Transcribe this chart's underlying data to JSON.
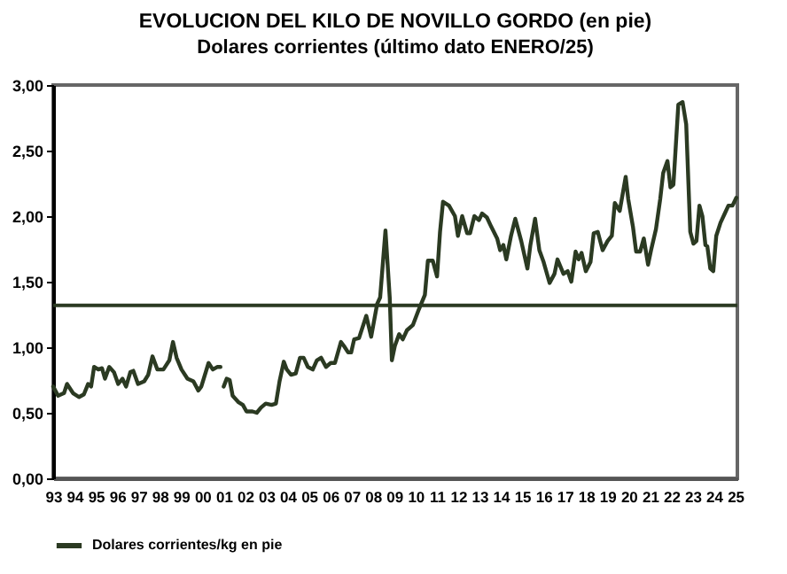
{
  "chart_data": {
    "type": "line",
    "title": "EVOLUCION DEL KILO DE NOVILLO GORDO (en pie)",
    "subtitle": "Dolares corrientes (último dato ENERO/25)",
    "x": [
      1993.0,
      1993.23,
      1993.51,
      1993.65,
      1993.93,
      1994.21,
      1994.44,
      1994.64,
      1994.78,
      1994.92,
      1995.12,
      1995.29,
      1995.43,
      1995.63,
      1995.85,
      1996.05,
      1996.25,
      1996.42,
      1996.62,
      1996.76,
      1996.98,
      1997.27,
      1997.46,
      1997.66,
      1997.89,
      1998.17,
      1998.45,
      1998.62,
      1998.79,
      1999.02,
      1999.3,
      1999.58,
      1999.81,
      1999.95,
      2000.29,
      2000.49,
      2000.71,
      2000.85,
      2000.92,
      2001.0,
      2001.14,
      2001.28,
      2001.42,
      2001.7,
      2001.9,
      2002.07,
      2002.35,
      2002.55,
      2002.75,
      2002.97,
      2003.25,
      2003.45,
      2003.62,
      2003.82,
      2003.96,
      2004.16,
      2004.38,
      2004.58,
      2004.75,
      2004.95,
      2005.18,
      2005.37,
      2005.57,
      2005.8,
      2006.02,
      2006.22,
      2006.5,
      2006.64,
      2006.84,
      2006.98,
      2007.12,
      2007.35,
      2007.69,
      2007.92,
      2008.2,
      2008.34,
      2008.59,
      2008.79,
      2008.89,
      2009.03,
      2009.23,
      2009.4,
      2009.6,
      2009.88,
      2010.16,
      2010.44,
      2010.58,
      2010.81,
      2011.01,
      2011.15,
      2011.29,
      2011.57,
      2011.85,
      2011.99,
      2012.19,
      2012.42,
      2012.56,
      2012.76,
      2012.98,
      2013.12,
      2013.35,
      2013.55,
      2013.83,
      2013.97,
      2014.12,
      2014.26,
      2014.48,
      2014.68,
      2014.96,
      2015.25,
      2015.39,
      2015.61,
      2015.81,
      2016.01,
      2016.29,
      2016.52,
      2016.66,
      2016.94,
      2017.14,
      2017.31,
      2017.51,
      2017.65,
      2017.79,
      2017.99,
      2018.21,
      2018.36,
      2018.55,
      2018.78,
      2019.01,
      2019.21,
      2019.35,
      2019.58,
      2019.86,
      2019.98,
      2020.2,
      2020.35,
      2020.54,
      2020.71,
      2020.91,
      2021.05,
      2021.28,
      2021.48,
      2021.62,
      2021.82,
      2021.96,
      2022.1,
      2022.33,
      2022.53,
      2022.7,
      2022.89,
      2023.04,
      2023.18,
      2023.32,
      2023.46,
      2023.6,
      2023.69,
      2023.83,
      2023.97,
      2024.11,
      2024.31,
      2024.51,
      2024.68,
      2024.87,
      2025.05
    ],
    "series": [
      {
        "name": "Dolares corrientes/kg en pie",
        "color": "#2b3a22",
        "values": [
          0.7,
          0.63,
          0.65,
          0.72,
          0.65,
          0.62,
          0.64,
          0.72,
          0.7,
          0.85,
          0.83,
          0.84,
          0.76,
          0.85,
          0.81,
          0.72,
          0.76,
          0.7,
          0.81,
          0.82,
          0.72,
          0.74,
          0.79,
          0.93,
          0.83,
          0.83,
          0.9,
          1.04,
          0.92,
          0.83,
          0.76,
          0.74,
          0.67,
          0.7,
          0.88,
          0.83,
          0.85,
          0.85,
          null,
          0.7,
          0.76,
          0.75,
          0.63,
          0.58,
          0.56,
          0.51,
          0.51,
          0.5,
          0.54,
          0.57,
          0.56,
          0.57,
          0.74,
          0.89,
          0.83,
          0.79,
          0.8,
          0.92,
          0.92,
          0.85,
          0.83,
          0.9,
          0.92,
          0.85,
          0.88,
          0.88,
          1.04,
          1.01,
          0.96,
          0.96,
          1.06,
          1.07,
          1.24,
          1.08,
          1.33,
          1.38,
          1.89,
          1.38,
          0.9,
          1.01,
          1.1,
          1.06,
          1.13,
          1.17,
          1.29,
          1.4,
          1.66,
          1.66,
          1.54,
          1.88,
          2.11,
          2.08,
          2.0,
          1.85,
          2.0,
          1.87,
          1.87,
          2.0,
          1.97,
          2.02,
          1.99,
          1.92,
          1.83,
          1.74,
          1.78,
          1.67,
          1.85,
          1.98,
          1.81,
          1.6,
          1.78,
          1.98,
          1.74,
          1.65,
          1.49,
          1.56,
          1.67,
          1.56,
          1.58,
          1.5,
          1.73,
          1.67,
          1.72,
          1.58,
          1.65,
          1.87,
          1.88,
          1.74,
          1.81,
          1.85,
          2.1,
          2.04,
          2.3,
          2.13,
          1.92,
          1.73,
          1.73,
          1.83,
          1.63,
          1.74,
          1.9,
          2.13,
          2.33,
          2.42,
          2.22,
          2.24,
          2.85,
          2.87,
          2.7,
          1.88,
          1.79,
          1.81,
          2.08,
          2.0,
          1.78,
          1.77,
          1.6,
          1.58,
          1.85,
          1.95,
          2.02,
          2.08,
          2.08,
          2.14
        ]
      }
    ],
    "xlim": [
      1993,
      2025.1
    ],
    "xticks": [
      {
        "value": 1993,
        "label": "93"
      },
      {
        "value": 1994,
        "label": "94"
      },
      {
        "value": 1995,
        "label": "95"
      },
      {
        "value": 1996,
        "label": "96"
      },
      {
        "value": 1997,
        "label": "97"
      },
      {
        "value": 1998,
        "label": "98"
      },
      {
        "value": 1999,
        "label": "99"
      },
      {
        "value": 2000,
        "label": "00"
      },
      {
        "value": 2001,
        "label": "01"
      },
      {
        "value": 2002,
        "label": "02"
      },
      {
        "value": 2003,
        "label": "03"
      },
      {
        "value": 2004,
        "label": "04"
      },
      {
        "value": 2005,
        "label": "05"
      },
      {
        "value": 2006,
        "label": "06"
      },
      {
        "value": 2007,
        "label": "07"
      },
      {
        "value": 2008,
        "label": "08"
      },
      {
        "value": 2009,
        "label": "09"
      },
      {
        "value": 2010,
        "label": "10"
      },
      {
        "value": 2011,
        "label": "11"
      },
      {
        "value": 2012,
        "label": "12"
      },
      {
        "value": 2013,
        "label": "13"
      },
      {
        "value": 2014,
        "label": "14"
      },
      {
        "value": 2015,
        "label": "15"
      },
      {
        "value": 2016,
        "label": "16"
      },
      {
        "value": 2017,
        "label": "17"
      },
      {
        "value": 2018,
        "label": "18"
      },
      {
        "value": 2019,
        "label": "19"
      },
      {
        "value": 2020,
        "label": "20"
      },
      {
        "value": 2021,
        "label": "21"
      },
      {
        "value": 2022,
        "label": "22"
      },
      {
        "value": 2023,
        "label": "23"
      },
      {
        "value": 2024,
        "label": "24"
      },
      {
        "value": 2025,
        "label": "25"
      }
    ],
    "ylim": [
      0,
      3
    ],
    "yticks": [
      {
        "value": 0,
        "label": "0,00"
      },
      {
        "value": 0.5,
        "label": "0,50"
      },
      {
        "value": 1,
        "label": "1,00"
      },
      {
        "value": 1.5,
        "label": "1,50"
      },
      {
        "value": 2,
        "label": "2,00"
      },
      {
        "value": 2.5,
        "label": "2,50"
      },
      {
        "value": 3,
        "label": "3,00"
      }
    ],
    "ref_lines": [
      {
        "axis": "y",
        "value": 1.32,
        "color": "#2b3a22"
      }
    ],
    "legend": "bottom"
  }
}
